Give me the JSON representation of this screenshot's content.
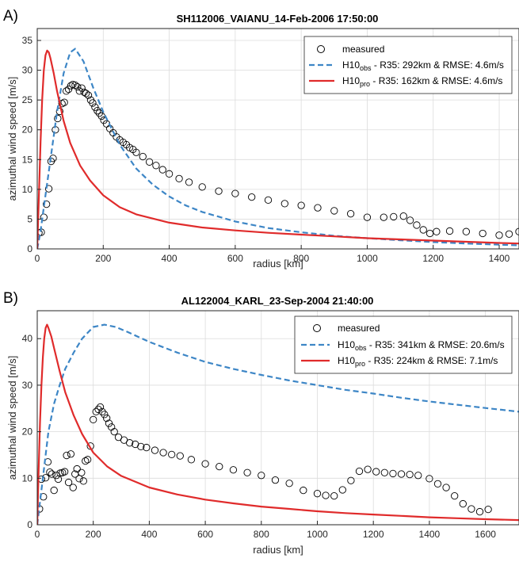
{
  "chart_data": [
    {
      "type": "line",
      "panel_label": "A)",
      "title": "SH112006_VAIANU_14-Feb-2006 17:50:00",
      "xlabel": "radius [km]",
      "ylabel": "azimuthal wind speed [m/s]",
      "xlim": [
        0,
        1460
      ],
      "ylim": [
        0,
        37
      ],
      "xticks": [
        0,
        200,
        400,
        600,
        800,
        1000,
        1200,
        1400
      ],
      "yticks": [
        0,
        5,
        10,
        15,
        20,
        25,
        30,
        35
      ],
      "grid": true,
      "legend_position": "top-right",
      "legend": {
        "measured": "measured",
        "obs": {
          "prefix": "H10",
          "sub": "obs",
          "text": " - R35: 292km & RMSE: 4.6m/s"
        },
        "pro": {
          "prefix": "H10",
          "sub": "pro",
          "text": " - R35: 162km & RMSE: 4.6m/s"
        }
      },
      "series": [
        {
          "style": "dashed",
          "color": "#3d86c6",
          "x": [
            0,
            10,
            20,
            40,
            60,
            80,
            100,
            115,
            140,
            170,
            200,
            250,
            300,
            350,
            400,
            450,
            500,
            600,
            700,
            800,
            900,
            1000,
            1100,
            1200,
            1300,
            1400,
            1460
          ],
          "y": [
            0,
            3,
            7,
            15,
            23,
            29.5,
            33,
            33.6,
            31.5,
            27,
            23,
            17.5,
            13.5,
            10.8,
            8.8,
            7.3,
            6.2,
            4.6,
            3.5,
            2.8,
            2.2,
            1.8,
            1.45,
            1.15,
            0.9,
            0.7,
            0.6
          ]
        },
        {
          "style": "solid",
          "color": "#e02b2b",
          "x": [
            0,
            5,
            10,
            15,
            20,
            25,
            30,
            35,
            40,
            50,
            60,
            80,
            100,
            130,
            160,
            200,
            250,
            300,
            400,
            500,
            600,
            700,
            800,
            900,
            1000,
            1100,
            1200,
            1300,
            1400,
            1460
          ],
          "y": [
            0,
            9,
            18,
            25,
            30,
            32.5,
            33.3,
            33,
            32,
            29.5,
            26.5,
            21.5,
            17.8,
            14,
            11.5,
            9,
            7,
            5.8,
            4.4,
            3.6,
            3.1,
            2.7,
            2.4,
            2.1,
            1.8,
            1.6,
            1.4,
            1.2,
            1.0,
            0.9
          ]
        },
        {
          "style": "markers",
          "x": [
            5,
            12,
            20,
            28,
            35,
            42,
            48,
            55,
            62,
            68,
            75,
            82,
            88,
            95,
            102,
            108,
            115,
            122,
            128,
            135,
            142,
            148,
            155,
            162,
            168,
            175,
            182,
            188,
            195,
            202,
            210,
            220,
            230,
            240,
            250,
            260,
            270,
            280,
            290,
            300,
            320,
            340,
            360,
            380,
            400,
            430,
            460,
            500,
            550,
            600,
            650,
            700,
            750,
            800,
            850,
            900,
            950,
            1000,
            1050,
            1080,
            1110,
            1130,
            1150,
            1170,
            1190,
            1210,
            1250,
            1300,
            1350,
            1400,
            1430,
            1460
          ],
          "y": [
            2.7,
            2.8,
            5.3,
            7.5,
            10.1,
            14.7,
            15.2,
            20.0,
            21.9,
            23.1,
            24.4,
            24.6,
            26.5,
            26.8,
            27.4,
            27.6,
            27.5,
            27.2,
            26.5,
            27.0,
            26.3,
            26.1,
            25.8,
            25.0,
            24.5,
            23.8,
            23.2,
            22.8,
            22.3,
            21.6,
            21.0,
            20.2,
            19.5,
            18.8,
            18.3,
            17.9,
            17.5,
            17.0,
            16.7,
            16.2,
            15.5,
            14.6,
            14.0,
            13.3,
            12.6,
            11.8,
            11.2,
            10.4,
            9.7,
            9.3,
            8.7,
            8.2,
            7.6,
            7.3,
            6.9,
            6.4,
            5.9,
            5.3,
            5.3,
            5.4,
            5.5,
            4.8,
            4.0,
            3.2,
            2.6,
            2.9,
            3.0,
            2.9,
            2.6,
            2.3,
            2.5,
            2.9
          ]
        }
      ]
    },
    {
      "type": "line",
      "panel_label": "B)",
      "title": "AL122004_KARL_23-Sep-2004 21:40:00",
      "xlabel": "radius [km]",
      "ylabel": "azimuthal wind speed [m/s]",
      "xlim": [
        0,
        1720
      ],
      "ylim": [
        0,
        46
      ],
      "xticks": [
        0,
        200,
        400,
        600,
        800,
        1000,
        1200,
        1400,
        1600
      ],
      "yticks": [
        0,
        10,
        20,
        30,
        40
      ],
      "grid": true,
      "legend_position": "top-right",
      "legend": {
        "measured": "measured",
        "obs": {
          "prefix": "H10",
          "sub": "obs",
          "text": " - R35: 341km & RMSE: 20.6m/s"
        },
        "pro": {
          "prefix": "H10",
          "sub": "pro",
          "text": " - R35: 224km & RMSE: 7.1m/s"
        }
      },
      "series": [
        {
          "style": "dashed",
          "color": "#3d86c6",
          "x": [
            0,
            20,
            40,
            60,
            80,
            100,
            130,
            160,
            200,
            240,
            280,
            320,
            400,
            500,
            600,
            700,
            800,
            900,
            1000,
            1100,
            1200,
            1300,
            1400,
            1500,
            1600,
            1720
          ],
          "y": [
            0,
            10,
            20,
            26,
            30,
            33.5,
            37,
            40,
            42.5,
            43,
            42.5,
            41.5,
            39.3,
            37,
            35,
            33.5,
            32.2,
            31,
            30,
            29,
            28.2,
            27.3,
            26.5,
            25.8,
            25.1,
            24.3
          ]
        },
        {
          "style": "solid",
          "color": "#e02b2b",
          "x": [
            0,
            5,
            10,
            15,
            20,
            25,
            30,
            35,
            40,
            50,
            60,
            80,
            100,
            130,
            160,
            200,
            250,
            300,
            400,
            500,
            600,
            700,
            800,
            900,
            1000,
            1100,
            1200,
            1300,
            1400,
            1500,
            1600,
            1720
          ],
          "y": [
            0,
            12,
            22,
            30,
            36,
            40,
            42.3,
            43,
            42.3,
            40.5,
            38,
            33,
            28.5,
            23.5,
            19.5,
            15.5,
            12.5,
            10.5,
            8,
            6.5,
            5.4,
            4.6,
            3.9,
            3.4,
            2.9,
            2.5,
            2.2,
            1.9,
            1.6,
            1.4,
            1.2,
            1.0
          ]
        },
        {
          "style": "markers",
          "x": [
            8,
            15,
            22,
            30,
            38,
            45,
            52,
            60,
            68,
            75,
            82,
            90,
            98,
            105,
            112,
            120,
            128,
            135,
            142,
            150,
            158,
            165,
            172,
            180,
            190,
            200,
            210,
            218,
            225,
            232,
            240,
            248,
            256,
            265,
            275,
            290,
            310,
            330,
            350,
            370,
            390,
            420,
            450,
            480,
            510,
            550,
            600,
            650,
            700,
            750,
            800,
            850,
            900,
            950,
            1000,
            1030,
            1060,
            1090,
            1120,
            1150,
            1180,
            1210,
            1240,
            1270,
            1300,
            1330,
            1360,
            1400,
            1430,
            1460,
            1490,
            1520,
            1550,
            1580,
            1610
          ],
          "y": [
            3.4,
            9.8,
            6.0,
            10.1,
            13.5,
            11.3,
            10.9,
            7.4,
            10.6,
            9.8,
            11.1,
            11.2,
            11.4,
            14.9,
            9.1,
            15.2,
            8.0,
            10.9,
            12.0,
            9.9,
            11.2,
            9.4,
            13.7,
            14.0,
            16.9,
            22.6,
            24.3,
            24.8,
            25.3,
            24.3,
            23.7,
            22.9,
            21.8,
            21.0,
            20.0,
            18.8,
            18.2,
            17.6,
            17.3,
            16.8,
            16.6,
            16.0,
            15.5,
            15.1,
            14.8,
            14.0,
            13.1,
            12.5,
            11.8,
            11.2,
            10.6,
            9.6,
            8.9,
            7.4,
            6.7,
            6.3,
            6.2,
            7.5,
            9.5,
            11.5,
            11.9,
            11.4,
            11.2,
            11.0,
            10.9,
            10.8,
            10.6,
            9.9,
            8.8,
            8.0,
            6.2,
            4.5,
            3.4,
            2.8,
            3.3
          ]
        }
      ]
    }
  ]
}
